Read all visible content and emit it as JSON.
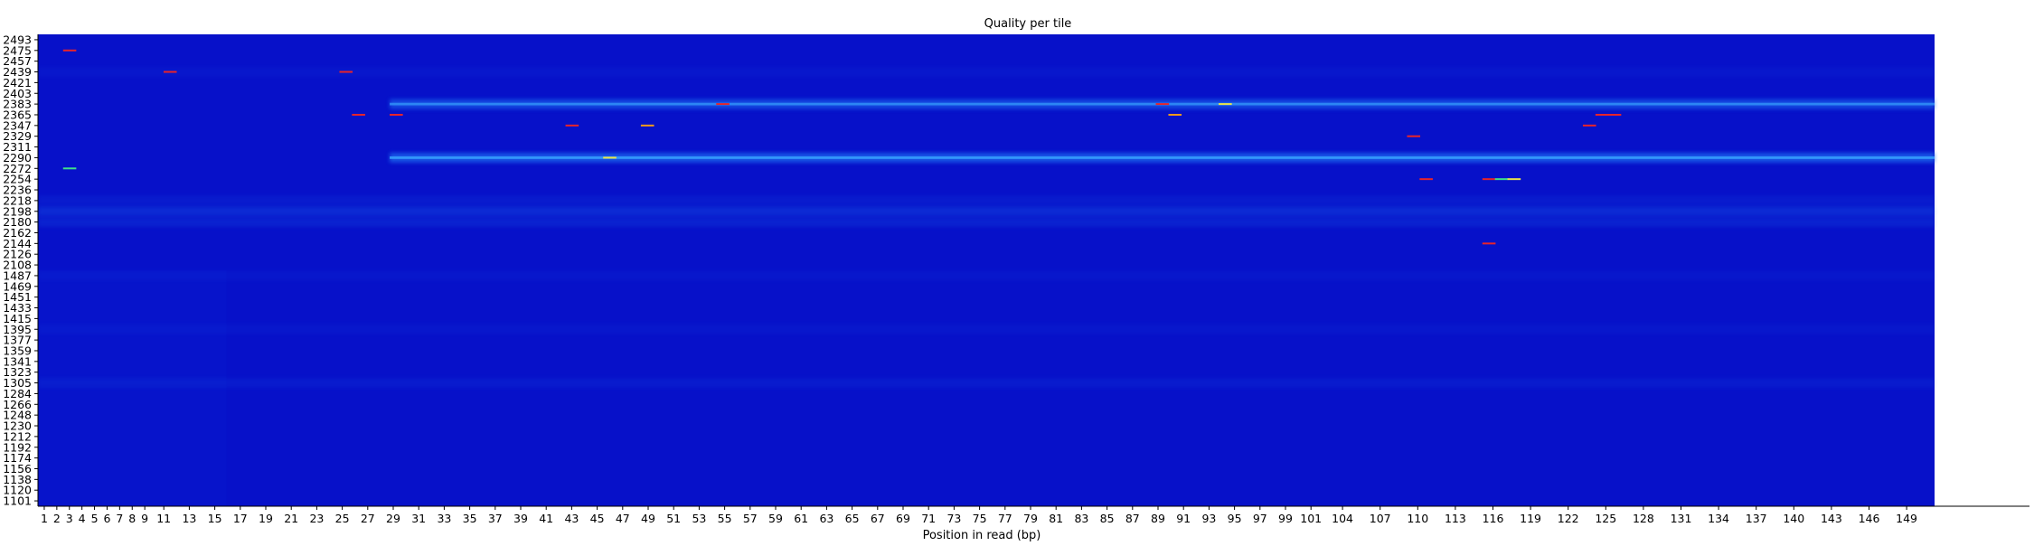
{
  "chart_data": {
    "type": "heatmap",
    "title": "Quality per tile",
    "xlabel": "Position in read (bp)",
    "ylabel": "",
    "x_tick_labels": [
      "1",
      "2",
      "3",
      "4",
      "5",
      "6",
      "7",
      "8",
      "9",
      "11",
      "13",
      "15",
      "17",
      "19",
      "21",
      "23",
      "25",
      "27",
      "29",
      "31",
      "33",
      "35",
      "37",
      "39",
      "41",
      "43",
      "45",
      "47",
      "49",
      "51",
      "53",
      "55",
      "57",
      "59",
      "61",
      "63",
      "65",
      "67",
      "69",
      "71",
      "73",
      "75",
      "77",
      "79",
      "81",
      "83",
      "85",
      "87",
      "89",
      "91",
      "93",
      "95",
      "97",
      "99",
      "101",
      "104",
      "107",
      "110",
      "113",
      "116",
      "119",
      "122",
      "125",
      "128",
      "131",
      "134",
      "137",
      "140",
      "143",
      "146",
      "149"
    ],
    "y_tick_labels": [
      "2493",
      "2475",
      "2457",
      "2439",
      "2421",
      "2403",
      "2383",
      "2365",
      "2347",
      "2329",
      "2311",
      "2290",
      "2272",
      "2254",
      "2236",
      "2218",
      "2198",
      "2180",
      "2162",
      "2144",
      "2126",
      "2108",
      "1487",
      "1469",
      "1451",
      "1433",
      "1415",
      "1395",
      "1377",
      "1359",
      "1341",
      "1323",
      "1305",
      "1284",
      "1266",
      "1248",
      "1230",
      "1212",
      "1192",
      "1174",
      "1156",
      "1138",
      "1120",
      "1101"
    ],
    "colors": {
      "background": "#0711c9",
      "cool": "#0a22d8",
      "mild": "#1e6ef0",
      "bright": "#3aa8ff",
      "hot_red": "#e8242a",
      "hot_orange": "#f29a1a",
      "hot_yellow": "#e9e34a",
      "hot_green": "#3fe08a"
    },
    "band_rows": [
      {
        "tile": "2383",
        "from_pos": 29,
        "to_pos": 151,
        "level": 0.65
      },
      {
        "tile": "2290",
        "from_pos": 29,
        "to_pos": 151,
        "level": 0.8
      },
      {
        "tile": "2198",
        "from_pos": 1,
        "to_pos": 151,
        "level": 0.3
      },
      {
        "tile": "2180",
        "from_pos": 1,
        "to_pos": 151,
        "level": 0.2
      },
      {
        "tile": "2218",
        "from_pos": 1,
        "to_pos": 151,
        "level": 0.12
      },
      {
        "tile": "2439",
        "from_pos": 1,
        "to_pos": 151,
        "level": 0.08
      },
      {
        "tile": "1305",
        "from_pos": 1,
        "to_pos": 151,
        "level": 0.12
      },
      {
        "tile": "1487",
        "from_pos": 1,
        "to_pos": 151,
        "level": 0.08
      },
      {
        "tile": "1395",
        "from_pos": 1,
        "to_pos": 151,
        "level": 0.08
      }
    ],
    "early_patch": {
      "from_pos": 1,
      "to_pos": 15,
      "from_tile": "1487",
      "to_tile": "1101",
      "level": 0.2
    },
    "hot_spots": [
      {
        "pos": 3,
        "tile": "2475",
        "color": "hot_red"
      },
      {
        "pos": 11,
        "tile": "2439",
        "color": "hot_red"
      },
      {
        "pos": 25,
        "tile": "2439",
        "color": "hot_red"
      },
      {
        "pos": 26,
        "tile": "2365",
        "color": "hot_red"
      },
      {
        "pos": 29,
        "tile": "2365",
        "color": "hot_red"
      },
      {
        "pos": 43,
        "tile": "2347",
        "color": "hot_red"
      },
      {
        "pos": 49,
        "tile": "2347",
        "color": "hot_orange"
      },
      {
        "pos": 55,
        "tile": "2383",
        "color": "hot_red"
      },
      {
        "pos": 90,
        "tile": "2383",
        "color": "hot_red"
      },
      {
        "pos": 91,
        "tile": "2365",
        "color": "hot_orange"
      },
      {
        "pos": 95,
        "tile": "2383",
        "color": "hot_yellow"
      },
      {
        "pos": 110,
        "tile": "2329",
        "color": "hot_red"
      },
      {
        "pos": 111,
        "tile": "2254",
        "color": "hot_red"
      },
      {
        "pos": 116,
        "tile": "2254",
        "color": "hot_red"
      },
      {
        "pos": 116,
        "tile": "2144",
        "color": "hot_red"
      },
      {
        "pos": 117,
        "tile": "2254",
        "color": "hot_green"
      },
      {
        "pos": 118,
        "tile": "2254",
        "color": "hot_yellow"
      },
      {
        "pos": 124,
        "tile": "2347",
        "color": "hot_red"
      },
      {
        "pos": 125,
        "tile": "2365",
        "color": "hot_red"
      },
      {
        "pos": 126,
        "tile": "2365",
        "color": "hot_red"
      },
      {
        "pos": 3,
        "tile": "2272",
        "color": "hot_green"
      },
      {
        "pos": 46,
        "tile": "2290",
        "color": "hot_yellow"
      }
    ]
  }
}
